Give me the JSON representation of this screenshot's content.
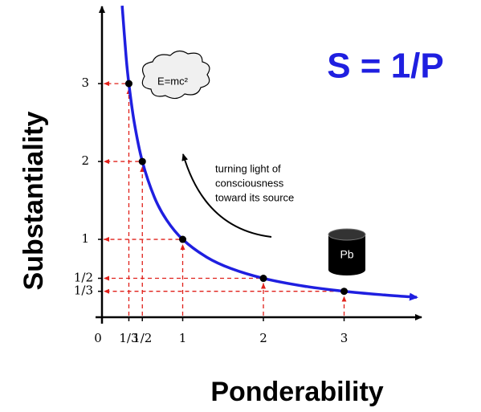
{
  "chart_data": {
    "type": "line",
    "title": "S = 1/P",
    "x_label": "Ponderability",
    "y_label": "Substantiality",
    "annotation": [
      "turning light of",
      "consciousness",
      "toward its source"
    ],
    "cloud_label": "E=mc²",
    "cylinder_label": "Pb",
    "xlim": [
      0,
      3.96
    ],
    "ylim": [
      0,
      3.95
    ],
    "xticks": [
      0,
      {
        "value": 0.333,
        "label": "1/3"
      },
      {
        "value": 0.5,
        "label": "1/2"
      },
      1,
      2,
      3
    ],
    "yticks": [
      {
        "value": 0.333,
        "label": "1/3"
      },
      {
        "value": 0.5,
        "label": "1/2"
      },
      1,
      2,
      3
    ],
    "guide_color": "#e0201a",
    "series": [
      {
        "type": "line",
        "color": "#1f1fe0",
        "x": [
          0.25,
          0.3,
          0.333,
          0.4,
          0.5,
          0.65,
          0.8,
          1,
          1.3,
          1.6,
          2,
          2.5,
          3,
          3.5,
          3.9
        ],
        "values": [
          4,
          3.33,
          3,
          2.5,
          2,
          1.54,
          1.25,
          1,
          0.77,
          0.625,
          0.5,
          0.4,
          0.333,
          0.286,
          0.256
        ]
      },
      {
        "type": "scatter",
        "color": "#000000",
        "x": [
          0.333,
          0.5,
          1,
          2,
          3
        ],
        "values": [
          3,
          2,
          1,
          0.5,
          0.333
        ]
      }
    ]
  }
}
